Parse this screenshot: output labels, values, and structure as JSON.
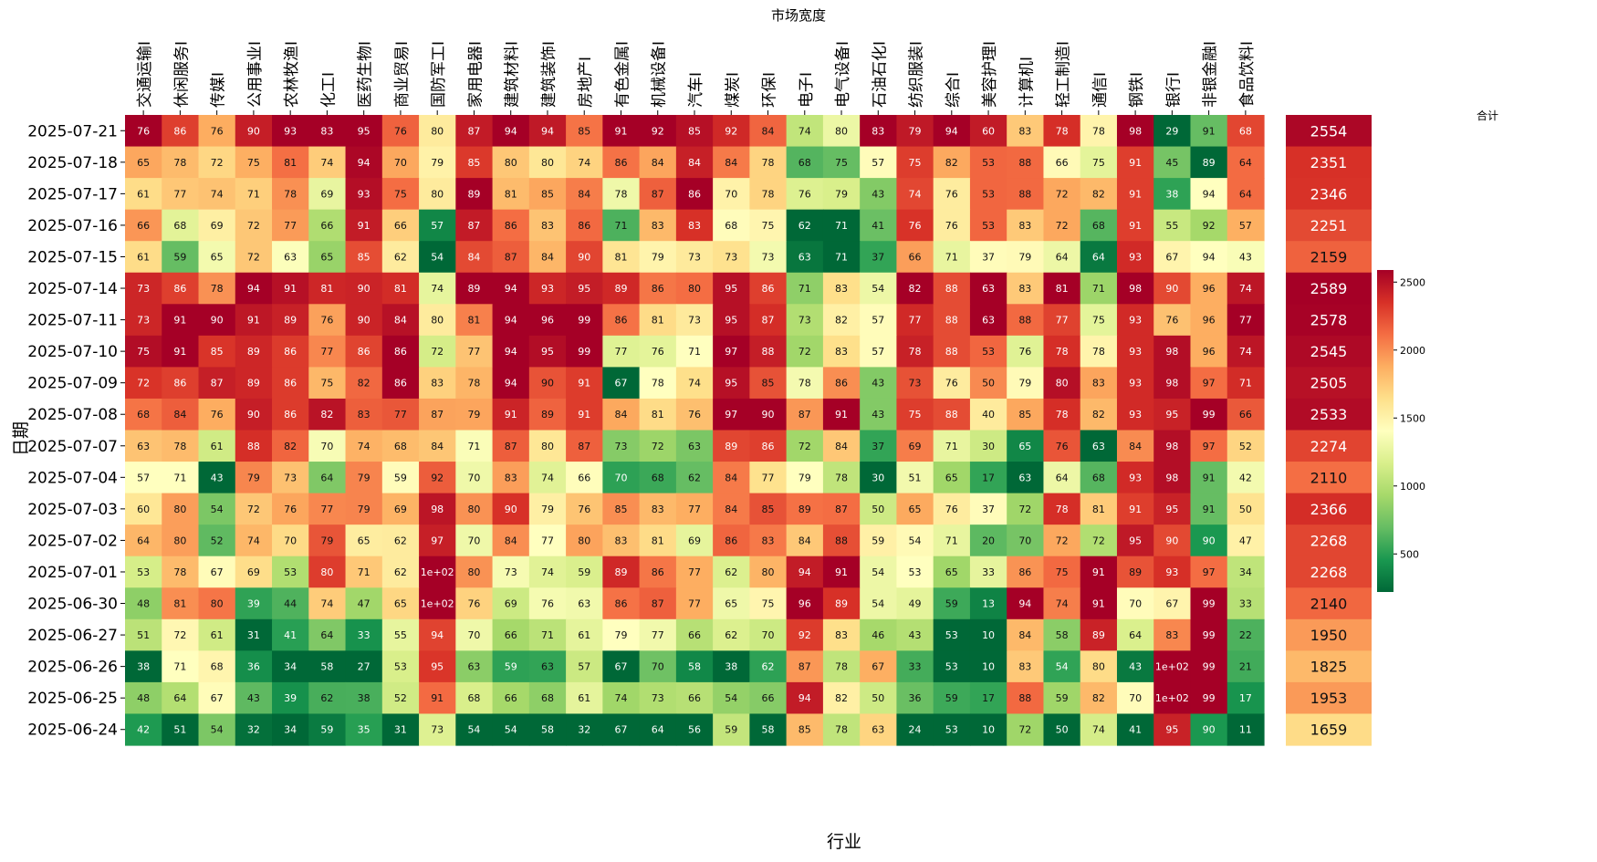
{
  "chart_data": {
    "type": "heatmap",
    "title": "市场宽度",
    "xlabel": "行业",
    "ylabel": "日期",
    "sum_title": "合计",
    "colormap": "RdYlGn_r",
    "industries": [
      "交通运输Ⅰ",
      "休闲服务Ⅰ",
      "传媒Ⅰ",
      "公用事业Ⅰ",
      "农林牧渔Ⅰ",
      "化工Ⅰ",
      "医药生物Ⅰ",
      "商业贸易Ⅰ",
      "国防军工Ⅰ",
      "家用电器Ⅰ",
      "建筑材料Ⅰ",
      "建筑装饰Ⅰ",
      "房地产Ⅰ",
      "有色金属Ⅰ",
      "机械设备Ⅰ",
      "汽车Ⅰ",
      "煤炭Ⅰ",
      "环保Ⅰ",
      "电子Ⅰ",
      "电气设备Ⅰ",
      "石油石化Ⅰ",
      "纺织服装Ⅰ",
      "综合Ⅰ",
      "美容护理Ⅰ",
      "计算机Ⅰ",
      "轻工制造Ⅰ",
      "通信Ⅰ",
      "钢铁Ⅰ",
      "银行Ⅰ",
      "非银金融Ⅰ",
      "食品饮料Ⅰ"
    ],
    "dates": [
      "2025-07-21",
      "2025-07-18",
      "2025-07-17",
      "2025-07-16",
      "2025-07-15",
      "2025-07-14",
      "2025-07-11",
      "2025-07-10",
      "2025-07-09",
      "2025-07-08",
      "2025-07-07",
      "2025-07-04",
      "2025-07-03",
      "2025-07-02",
      "2025-07-01",
      "2025-06-30",
      "2025-06-27",
      "2025-06-26",
      "2025-06-25",
      "2025-06-24"
    ],
    "values": [
      [
        76,
        86,
        76,
        90,
        93,
        83,
        95,
        76,
        80,
        87,
        94,
        94,
        85,
        91,
        92,
        85,
        92,
        84,
        74,
        80,
        83,
        79,
        94,
        60,
        83,
        78,
        78,
        98,
        29,
        91,
        68
      ],
      [
        65,
        78,
        72,
        75,
        81,
        74,
        94,
        70,
        79,
        85,
        80,
        80,
        74,
        86,
        84,
        84,
        84,
        78,
        68,
        75,
        57,
        75,
        82,
        53,
        88,
        66,
        75,
        91,
        45,
        89,
        64
      ],
      [
        61,
        77,
        74,
        71,
        78,
        69,
        93,
        75,
        80,
        89,
        81,
        85,
        84,
        78,
        87,
        86,
        70,
        78,
        76,
        79,
        43,
        74,
        76,
        53,
        88,
        72,
        82,
        91,
        38,
        94,
        64
      ],
      [
        66,
        68,
        69,
        72,
        77,
        66,
        91,
        66,
        57,
        87,
        86,
        83,
        86,
        71,
        83,
        83,
        68,
        75,
        62,
        71,
        41,
        76,
        76,
        53,
        83,
        72,
        68,
        91,
        55,
        92,
        57
      ],
      [
        61,
        59,
        65,
        72,
        63,
        65,
        85,
        62,
        54,
        84,
        87,
        84,
        90,
        81,
        79,
        73,
        73,
        73,
        63,
        71,
        37,
        66,
        71,
        37,
        79,
        64,
        64,
        93,
        67,
        94,
        43
      ],
      [
        73,
        86,
        78,
        94,
        91,
        81,
        90,
        81,
        74,
        89,
        94,
        93,
        95,
        89,
        86,
        80,
        95,
        86,
        71,
        83,
        54,
        82,
        88,
        63,
        83,
        81,
        71,
        98,
        90,
        96,
        74
      ],
      [
        73,
        91,
        90,
        91,
        89,
        76,
        90,
        84,
        80,
        81,
        94,
        96,
        99,
        86,
        81,
        73,
        95,
        87,
        73,
        82,
        57,
        77,
        88,
        63,
        88,
        77,
        75,
        93,
        76,
        96,
        77
      ],
      [
        75,
        91,
        85,
        89,
        86,
        77,
        86,
        86,
        72,
        77,
        94,
        95,
        99,
        77,
        76,
        71,
        97,
        88,
        72,
        83,
        57,
        78,
        88,
        53,
        76,
        78,
        78,
        93,
        98,
        96,
        74
      ],
      [
        72,
        86,
        87,
        89,
        86,
        75,
        82,
        86,
        83,
        78,
        94,
        90,
        91,
        67,
        78,
        74,
        95,
        85,
        78,
        86,
        43,
        73,
        76,
        50,
        79,
        80,
        83,
        93,
        98,
        97,
        71
      ],
      [
        68,
        84,
        76,
        90,
        86,
        82,
        83,
        77,
        87,
        79,
        91,
        89,
        91,
        84,
        81,
        76,
        97,
        90,
        87,
        91,
        43,
        75,
        88,
        40,
        85,
        78,
        82,
        93,
        95,
        99,
        66
      ],
      [
        63,
        78,
        61,
        88,
        82,
        70,
        74,
        68,
        84,
        71,
        87,
        80,
        87,
        73,
        72,
        63,
        89,
        86,
        72,
        84,
        37,
        69,
        71,
        30,
        65,
        76,
        63,
        84,
        98,
        97,
        52
      ],
      [
        57,
        71,
        43,
        79,
        73,
        64,
        79,
        59,
        92,
        70,
        83,
        74,
        66,
        70,
        68,
        62,
        84,
        77,
        79,
        78,
        30,
        51,
        65,
        17,
        63,
        64,
        68,
        93,
        98,
        91,
        42
      ],
      [
        60,
        80,
        54,
        72,
        76,
        77,
        79,
        69,
        98,
        80,
        90,
        79,
        76,
        85,
        83,
        77,
        84,
        85,
        89,
        87,
        50,
        65,
        76,
        37,
        72,
        78,
        81,
        91,
        95,
        91,
        50
      ],
      [
        64,
        80,
        52,
        74,
        70,
        79,
        65,
        62,
        97,
        70,
        84,
        77,
        80,
        83,
        81,
        69,
        86,
        83,
        84,
        88,
        59,
        54,
        71,
        20,
        70,
        72,
        72,
        95,
        90,
        90,
        47
      ],
      [
        53,
        78,
        67,
        69,
        53,
        80,
        71,
        62,
        100,
        80,
        73,
        74,
        59,
        89,
        86,
        77,
        62,
        80,
        94,
        91,
        54,
        53,
        65,
        33,
        86,
        75,
        91,
        89,
        93,
        97,
        34
      ],
      [
        48,
        81,
        80,
        39,
        44,
        74,
        47,
        65,
        100,
        76,
        69,
        76,
        63,
        86,
        87,
        77,
        65,
        75,
        96,
        89,
        54,
        49,
        59,
        13,
        94,
        74,
        91,
        70,
        67,
        99,
        33
      ],
      [
        51,
        72,
        61,
        31,
        41,
        64,
        33,
        55,
        94,
        70,
        66,
        71,
        61,
        79,
        77,
        66,
        62,
        70,
        92,
        83,
        46,
        43,
        53,
        10,
        84,
        58,
        89,
        64,
        83,
        99,
        22
      ],
      [
        38,
        71,
        68,
        36,
        34,
        58,
        27,
        53,
        95,
        63,
        59,
        63,
        57,
        67,
        70,
        58,
        38,
        62,
        87,
        78,
        67,
        33,
        53,
        10,
        83,
        54,
        80,
        43,
        100,
        99,
        21
      ],
      [
        48,
        64,
        67,
        43,
        39,
        62,
        38,
        52,
        91,
        68,
        66,
        68,
        61,
        74,
        73,
        66,
        54,
        66,
        94,
        82,
        50,
        36,
        59,
        17,
        88,
        59,
        82,
        70,
        100,
        99,
        17
      ],
      [
        42,
        51,
        54,
        32,
        34,
        59,
        35,
        31,
        73,
        54,
        54,
        58,
        32,
        67,
        64,
        56,
        59,
        58,
        85,
        78,
        63,
        24,
        53,
        10,
        72,
        50,
        74,
        41,
        95,
        90,
        11
      ]
    ],
    "value_labels": {
      "100": "1e+02"
    },
    "totals": [
      2554,
      2351,
      2346,
      2251,
      2159,
      2589,
      2578,
      2545,
      2505,
      2533,
      2274,
      2110,
      2366,
      2268,
      2268,
      2140,
      1950,
      1825,
      1953,
      1659
    ],
    "colorbar_ticks": [
      500,
      1000,
      1500,
      2000,
      2500
    ],
    "colorbar_range": [
      220,
      2589
    ]
  }
}
